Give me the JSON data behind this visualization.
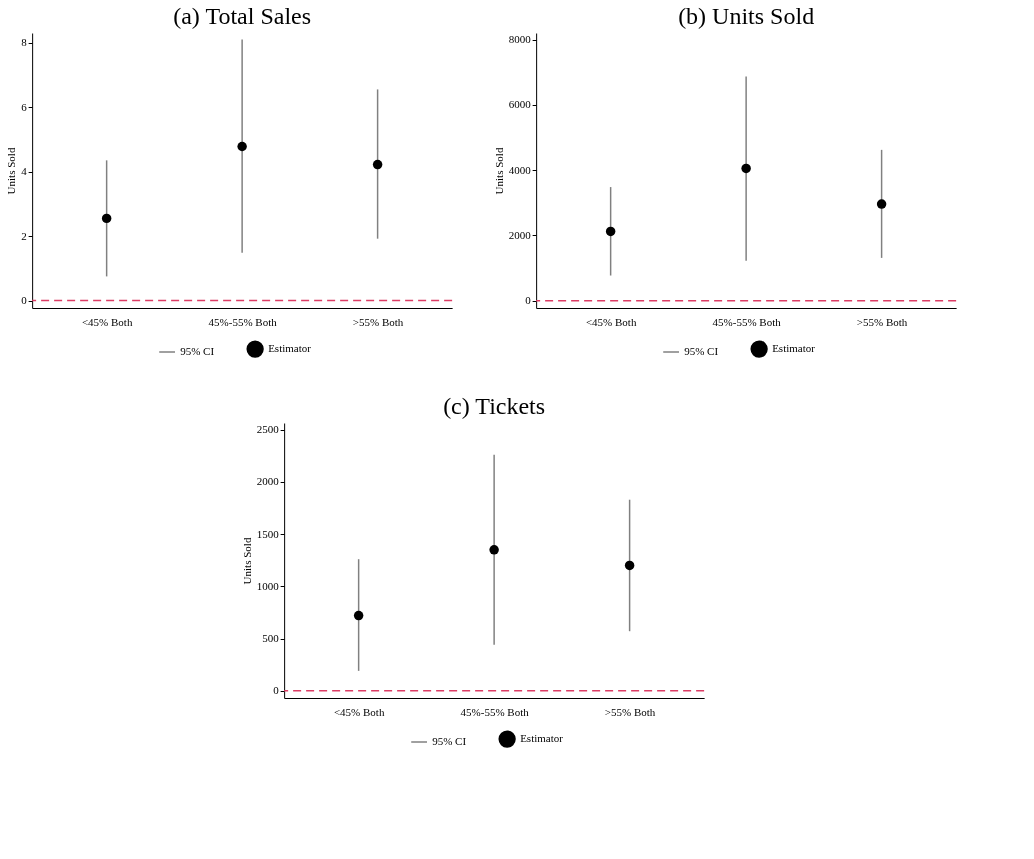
{
  "chart_data": [
    {
      "type": "scatter",
      "title": "(a) Total Sales",
      "ylabel": "Units Sold",
      "categories": [
        "<45% Both",
        "45%-55% Both",
        ">55% Both"
      ],
      "ylim": [
        -0.23,
        8.3
      ],
      "yticks": [
        0,
        2,
        4,
        6,
        8
      ],
      "legend": "bottom",
      "grid": false,
      "annotations": [
        "95% CI"
      ],
      "series": [
        {
          "name": "Estimator",
          "color": "#000000",
          "values": [
            2.55,
            4.78,
            4.22
          ],
          "errors": [
            [
              0.75,
              4.35
            ],
            [
              1.48,
              8.1
            ],
            [
              1.92,
              6.55
            ]
          ]
        }
      ],
      "ref_lines": [
        {
          "axis": "y",
          "value": 0,
          "color": "#dc3c64",
          "line_style": "dashed"
        }
      ]
    },
    {
      "type": "scatter",
      "title": "(b) Units Sold",
      "ylabel": "Units Sold",
      "categories": [
        "<45% Both",
        "45%-55% Both",
        ">55% Both"
      ],
      "ylim": [
        -225,
        8200
      ],
      "yticks": [
        0,
        2000,
        4000,
        6000,
        8000
      ],
      "legend": "bottom",
      "grid": false,
      "annotations": [
        "95% CI"
      ],
      "series": [
        {
          "name": "Estimator",
          "color": "#000000",
          "values": [
            2120,
            4050,
            2960
          ],
          "errors": [
            [
              770,
              3480
            ],
            [
              1220,
              6870
            ],
            [
              1310,
              4620
            ]
          ]
        }
      ],
      "ref_lines": [
        {
          "axis": "y",
          "value": 0,
          "color": "#dc3c64",
          "line_style": "dashed"
        }
      ]
    },
    {
      "type": "scatter",
      "title": "(c) Tickets",
      "ylabel": "Units Sold",
      "categories": [
        "<45% Both",
        "45%-55% Both",
        ">55% Both"
      ],
      "ylim": [
        -70,
        2565
      ],
      "yticks": [
        0,
        500,
        1000,
        1500,
        2000,
        2500
      ],
      "legend": "bottom",
      "grid": false,
      "annotations": [
        "95% CI"
      ],
      "series": [
        {
          "name": "Estimator",
          "color": "#000000",
          "values": [
            720,
            1350,
            1200
          ],
          "errors": [
            [
              190,
              1260
            ],
            [
              440,
              2260
            ],
            [
              570,
              1830
            ]
          ]
        }
      ],
      "ref_lines": [
        {
          "axis": "y",
          "value": 0,
          "color": "#dc3c64",
          "line_style": "dashed"
        }
      ]
    }
  ]
}
